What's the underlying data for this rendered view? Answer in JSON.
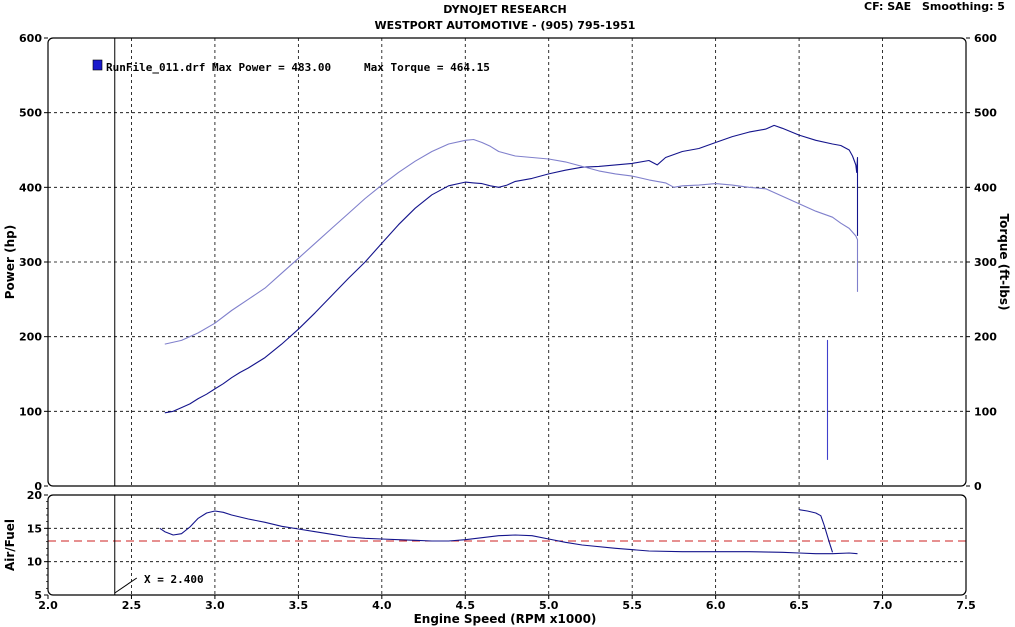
{
  "header": {
    "title": "DYNOJET RESEARCH",
    "subtitle": "WESTPORT AUTOMOTIVE - (905) 795-1951",
    "cf_label": "CF: SAE",
    "smoothing_label": "Smoothing: 5"
  },
  "legend": {
    "run_label": "RunFile_011.drf Max Power = 483.00",
    "torque_label": "Max Torque = 464.15",
    "swatch_color": "#1a1acc"
  },
  "cursor": {
    "label": "X = 2.400",
    "x": 2.4
  },
  "chart_data": [
    {
      "type": "line",
      "name": "power-torque",
      "xlabel": "",
      "ylabel_left": "Power (hp)",
      "ylabel_right": "Torque (ft-lbs)",
      "xlim": [
        2.0,
        7.5
      ],
      "ylim": [
        0,
        600
      ],
      "y_ticks_left": [
        "0",
        "100",
        "200",
        "300",
        "400",
        "500",
        "600"
      ],
      "y_ticks_right": [
        "0",
        "100",
        "200",
        "300",
        "400",
        "500",
        "600"
      ],
      "grid": true,
      "series": [
        {
          "key": "power",
          "color": "#14148c",
          "x": [
            2.7,
            2.75,
            2.8,
            2.85,
            2.9,
            2.95,
            3.0,
            3.05,
            3.1,
            3.15,
            3.2,
            3.3,
            3.4,
            3.5,
            3.6,
            3.7,
            3.8,
            3.9,
            4.0,
            4.1,
            4.2,
            4.3,
            4.4,
            4.5,
            4.55,
            4.6,
            4.65,
            4.7,
            4.75,
            4.8,
            4.9,
            5.0,
            5.1,
            5.2,
            5.3,
            5.4,
            5.5,
            5.6,
            5.65,
            5.7,
            5.8,
            5.9,
            6.0,
            6.1,
            6.2,
            6.3,
            6.35,
            6.4,
            6.5,
            6.6,
            6.7,
            6.75,
            6.8,
            6.82,
            6.83,
            6.84,
            6.845,
            6.85,
            6.85
          ],
          "y": [
            98,
            100,
            105,
            110,
            117,
            123,
            130,
            137,
            145,
            152,
            158,
            172,
            190,
            210,
            232,
            255,
            278,
            300,
            325,
            350,
            372,
            390,
            402,
            407,
            406,
            405,
            402,
            400,
            403,
            408,
            412,
            418,
            423,
            427,
            428,
            430,
            432,
            436,
            430,
            440,
            448,
            452,
            460,
            468,
            474,
            478,
            483,
            479,
            470,
            463,
            458,
            456,
            450,
            442,
            436,
            430,
            420,
            440,
            335
          ]
        },
        {
          "key": "torque",
          "color": "#8080cc",
          "x": [
            2.7,
            2.8,
            2.9,
            3.0,
            3.1,
            3.2,
            3.3,
            3.4,
            3.5,
            3.6,
            3.7,
            3.8,
            3.9,
            4.0,
            4.1,
            4.2,
            4.3,
            4.4,
            4.5,
            4.55,
            4.6,
            4.65,
            4.7,
            4.8,
            4.9,
            5.0,
            5.1,
            5.2,
            5.3,
            5.4,
            5.5,
            5.6,
            5.7,
            5.75,
            5.8,
            5.9,
            6.0,
            6.1,
            6.2,
            6.3,
            6.4,
            6.5,
            6.6,
            6.7,
            6.75,
            6.8,
            6.82,
            6.84,
            6.85,
            6.85
          ],
          "y": [
            190,
            195,
            205,
            218,
            235,
            250,
            265,
            285,
            305,
            325,
            345,
            365,
            385,
            403,
            420,
            435,
            448,
            458,
            463,
            464,
            460,
            455,
            448,
            442,
            440,
            438,
            434,
            428,
            422,
            418,
            415,
            410,
            406,
            400,
            402,
            403,
            405,
            403,
            400,
            398,
            388,
            378,
            368,
            360,
            352,
            345,
            340,
            335,
            330,
            260
          ]
        },
        {
          "key": "spike",
          "color": "#4040cc",
          "x": [
            6.67,
            6.67,
            6.67
          ],
          "y": [
            35,
            195,
            125
          ]
        }
      ]
    },
    {
      "type": "line",
      "name": "air-fuel",
      "xlabel": "Engine Speed (RPM x1000)",
      "ylabel": "Air/Fuel",
      "xlim": [
        2.0,
        7.5
      ],
      "ylim": [
        5,
        20
      ],
      "x_ticks": [
        "2.0",
        "2.5",
        "3.0",
        "3.5",
        "4.0",
        "4.5",
        "5.0",
        "5.5",
        "6.0",
        "6.5",
        "7.0",
        "7.5"
      ],
      "y_ticks": [
        "5",
        "10",
        "15",
        "20"
      ],
      "grid": true,
      "reference_line": {
        "y": 13.1,
        "color": "#cc2020"
      },
      "series": [
        {
          "key": "afr",
          "color": "#14148c",
          "x": [
            2.67,
            2.7,
            2.75,
            2.8,
            2.85,
            2.9,
            2.95,
            3.0,
            3.05,
            3.1,
            3.2,
            3.3,
            3.4,
            3.5,
            3.6,
            3.7,
            3.8,
            3.9,
            4.0,
            4.1,
            4.2,
            4.3,
            4.4,
            4.5,
            4.6,
            4.7,
            4.8,
            4.9,
            5.0,
            5.1,
            5.2,
            5.4,
            5.6,
            5.8,
            6.0,
            6.2,
            6.4,
            6.5,
            6.6,
            6.7,
            6.8,
            6.85
          ],
          "y": [
            15.0,
            14.5,
            14.0,
            14.2,
            15.2,
            16.5,
            17.3,
            17.6,
            17.4,
            17.0,
            16.4,
            15.9,
            15.3,
            14.9,
            14.5,
            14.1,
            13.7,
            13.5,
            13.4,
            13.3,
            13.2,
            13.1,
            13.1,
            13.3,
            13.6,
            13.9,
            14.0,
            13.9,
            13.4,
            12.9,
            12.5,
            12.0,
            11.6,
            11.5,
            11.5,
            11.5,
            11.4,
            11.3,
            11.2,
            11.2,
            11.3,
            11.2
          ]
        },
        {
          "key": "afr-tail",
          "color": "#14148c",
          "x": [
            6.5,
            6.55,
            6.6,
            6.63,
            6.65,
            6.68,
            6.7
          ],
          "y": [
            17.8,
            17.6,
            17.3,
            16.9,
            15.5,
            13.0,
            11.4
          ]
        }
      ]
    }
  ]
}
